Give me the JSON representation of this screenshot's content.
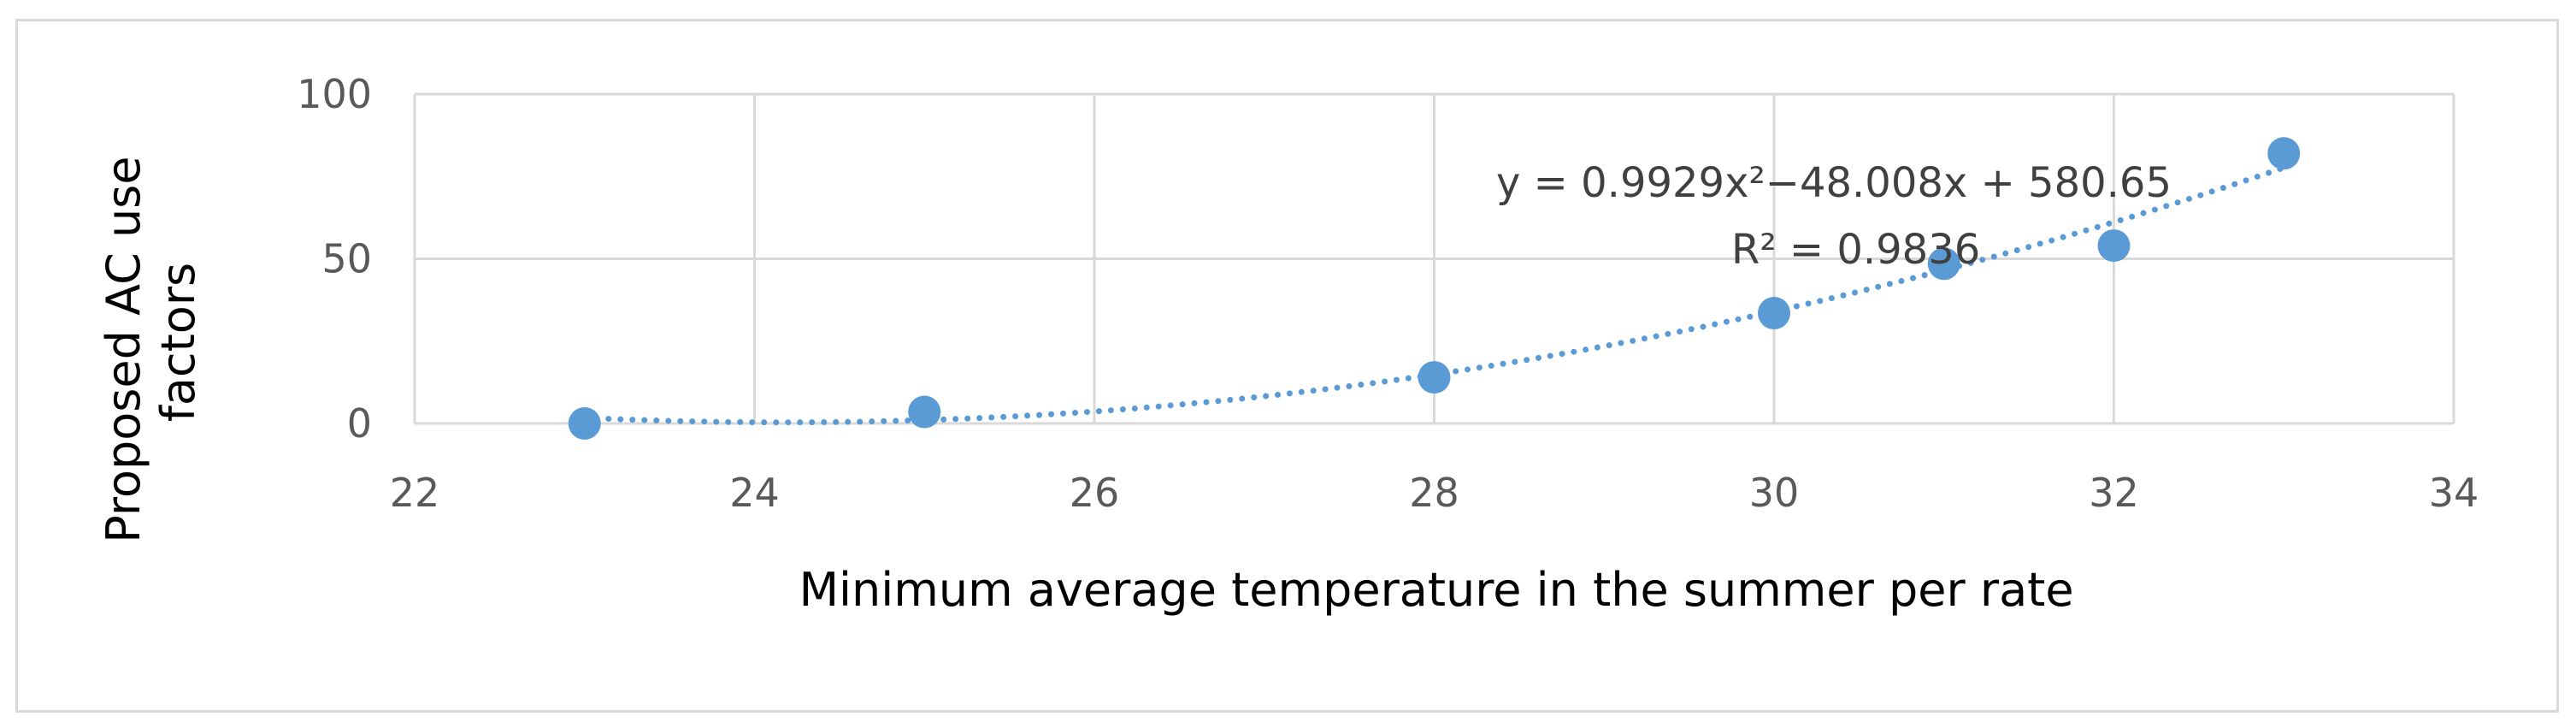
{
  "chart_data": {
    "type": "scatter",
    "title": "",
    "xlabel": "Minimum average temperature in the summer per rate",
    "ylabel": "Proposed AC use factors",
    "xlim": [
      22,
      34
    ],
    "ylim": [
      0,
      100
    ],
    "xticks": [
      22,
      24,
      26,
      28,
      30,
      32,
      34
    ],
    "yticks": [
      0,
      50,
      100
    ],
    "grid": true,
    "legend": "none",
    "series": [
      {
        "x": [
          23,
          25,
          28,
          30,
          31,
          32,
          33
        ],
        "y": [
          0,
          3.5,
          14,
          33.5,
          48.5,
          54,
          82
        ],
        "color": "#5b9bd5"
      }
    ],
    "trendline": {
      "type": "polynomial",
      "order": 2,
      "coefficients": [
        0.9929,
        -48.008,
        580.65
      ],
      "style": "dotted",
      "color": "#5b9bd5",
      "equation_label": "y = 0.9929x²−48.008x + 580.65",
      "r2_label": "R² = 0.9836"
    }
  }
}
